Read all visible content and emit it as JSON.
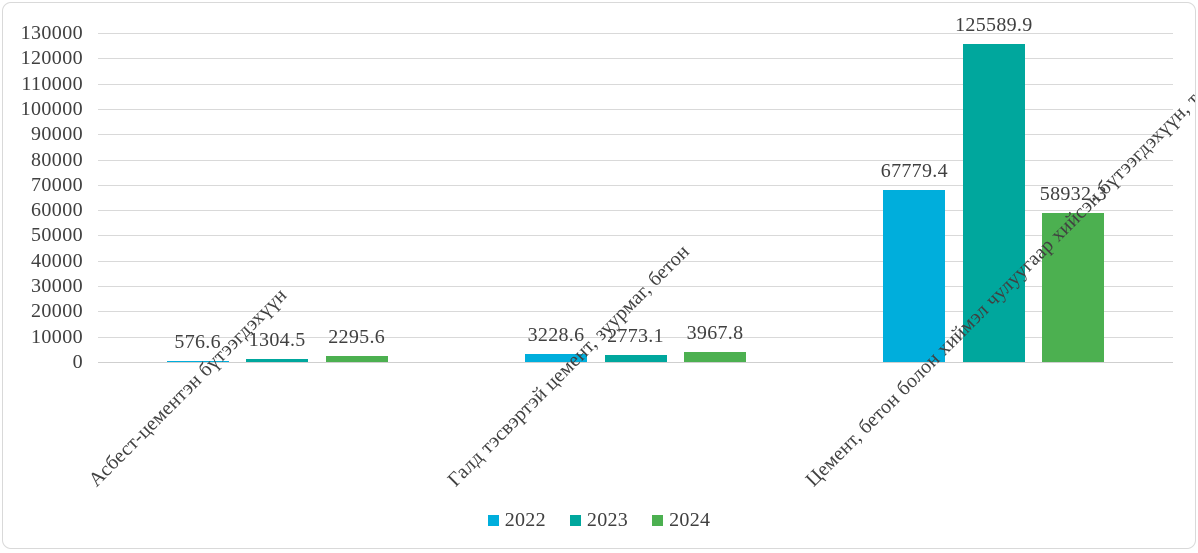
{
  "chart_data": {
    "type": "bar",
    "title": "",
    "xlabel": "",
    "ylabel": "",
    "categories": [
      "Асбест-цементэн бүтээгдэхүүн",
      "Галд тэсвэртэй цемент, зуурмаг, бетон",
      "Цемент, бетон болон хиймэл чулуугаар хийсэн бүтээгдэхүүн, то"
    ],
    "series": [
      {
        "name": "2022",
        "color": "#00AEDC",
        "values": [
          576.6,
          3228.6,
          67779.4
        ]
      },
      {
        "name": "2023",
        "color": "#00A79D",
        "values": [
          1304.5,
          2773.1,
          125589.9
        ]
      },
      {
        "name": "2024",
        "color": "#4CB050",
        "values": [
          2295.6,
          3967.8,
          58932.3
        ]
      }
    ],
    "data_labels_decimals": 1,
    "ylim": [
      0,
      130000
    ],
    "ytick_step": 10000,
    "grid": true,
    "legend_position": "bottom",
    "legend_labels": [
      "2022",
      "2023",
      "2024"
    ]
  },
  "styles": {
    "background": "#FFFFFF",
    "border_color": "#D9D9D9",
    "grid_color": "#D9D9D9",
    "baseline_color": "#CFCFCF",
    "text_color": "#404040",
    "series_colors": [
      "#00AEDC",
      "#00A79D",
      "#4CB050"
    ]
  }
}
